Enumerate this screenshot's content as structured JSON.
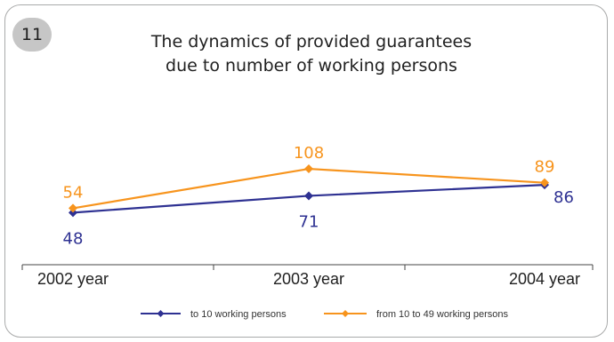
{
  "badge": "11",
  "chart_data": {
    "type": "line",
    "title_lines": [
      "The dynamics of provided guarantees",
      "due to number of working persons"
    ],
    "categories": [
      "2002 year",
      "2003 year",
      "2004 year"
    ],
    "series": [
      {
        "name": "to 10 working persons",
        "values": [
          48,
          71,
          86
        ],
        "color": "#2e3192",
        "label_positions": [
          "below",
          "below",
          "right"
        ]
      },
      {
        "name": "from 10 to 49 working persons",
        "values": [
          54,
          108,
          89
        ],
        "color": "#f7941d",
        "label_positions": [
          "above",
          "above",
          "above"
        ]
      }
    ],
    "grid": false,
    "legend": "bottom"
  }
}
